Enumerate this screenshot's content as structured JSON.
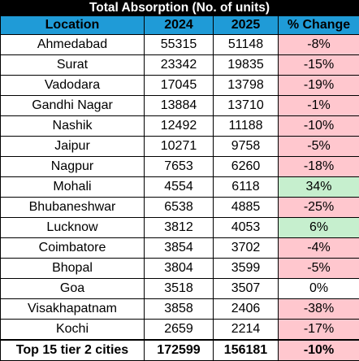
{
  "title": "Total Absorption (No. of units)",
  "headers": {
    "location": "Location",
    "y2024": "2024",
    "y2025": "2025",
    "change": "% Change"
  },
  "rows": [
    {
      "location": "Ahmedabad",
      "y2024": "55315",
      "y2025": "51148",
      "change": "-8%",
      "status": "neg"
    },
    {
      "location": "Surat",
      "y2024": "23342",
      "y2025": "19835",
      "change": "-15%",
      "status": "neg"
    },
    {
      "location": "Vadodara",
      "y2024": "17045",
      "y2025": "13798",
      "change": "-19%",
      "status": "neg"
    },
    {
      "location": "Gandhi Nagar",
      "y2024": "13884",
      "y2025": "13710",
      "change": "-1%",
      "status": "neg"
    },
    {
      "location": "Nashik",
      "y2024": "12492",
      "y2025": "11188",
      "change": "-10%",
      "status": "neg"
    },
    {
      "location": "Jaipur",
      "y2024": "10271",
      "y2025": "9758",
      "change": "-5%",
      "status": "neg"
    },
    {
      "location": "Nagpur",
      "y2024": "7653",
      "y2025": "6260",
      "change": "-18%",
      "status": "neg"
    },
    {
      "location": "Mohali",
      "y2024": "4554",
      "y2025": "6118",
      "change": "34%",
      "status": "pos"
    },
    {
      "location": "Bhubaneshwar",
      "y2024": "6538",
      "y2025": "4885",
      "change": "-25%",
      "status": "neg"
    },
    {
      "location": "Lucknow",
      "y2024": "3812",
      "y2025": "4053",
      "change": "6%",
      "status": "pos"
    },
    {
      "location": "Coimbatore",
      "y2024": "3854",
      "y2025": "3702",
      "change": "-4%",
      "status": "neg"
    },
    {
      "location": "Bhopal",
      "y2024": "3804",
      "y2025": "3599",
      "change": "-5%",
      "status": "neg"
    },
    {
      "location": "Goa",
      "y2024": "3518",
      "y2025": "3507",
      "change": "0%",
      "status": "zero"
    },
    {
      "location": "Visakhapatnam",
      "y2024": "3858",
      "y2025": "2406",
      "change": "-38%",
      "status": "neg"
    },
    {
      "location": "Kochi",
      "y2024": "2659",
      "y2025": "2214",
      "change": "-17%",
      "status": "neg"
    }
  ],
  "total": {
    "location": "Top 15 tier 2 cities",
    "y2024": "172599",
    "y2025": "156181",
    "change": "-10%",
    "status": "neg"
  },
  "colors": {
    "header_bg": "#1f9bd7",
    "title_bg": "#000000",
    "negative_fill": "#ffc7ce",
    "positive_fill": "#c6efce"
  }
}
